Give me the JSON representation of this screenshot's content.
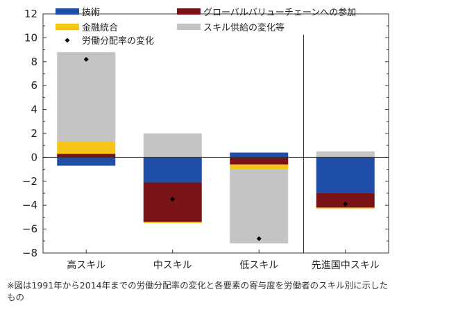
{
  "chart_data": {
    "type": "bar",
    "stacked": true,
    "categories": [
      "高スキル",
      "中スキル",
      "低スキル",
      "先進国中スキル"
    ],
    "ylim": [
      -8,
      12
    ],
    "yticks": [
      -8,
      -6,
      -4,
      -2,
      0,
      2,
      4,
      6,
      8,
      10,
      12
    ],
    "grid": false,
    "legend_position": "top",
    "series": [
      {
        "name": "技術",
        "color": "#1f4ea8",
        "values": [
          -0.7,
          -2.1,
          0.4,
          -3.0
        ]
      },
      {
        "name": "グローバルバリューチェーンへの参加",
        "color": "#7a1318",
        "values": [
          0.3,
          -3.3,
          -0.6,
          -1.2
        ]
      },
      {
        "name": "金融統合",
        "color": "#f5c518",
        "values": [
          1.0,
          -0.1,
          -0.4,
          -0.1
        ]
      },
      {
        "name": "スキル供給の変化等",
        "color": "#c4c4c4",
        "values": [
          7.5,
          2.0,
          -6.2,
          0.5
        ]
      }
    ],
    "marker_series": {
      "name": "労働分配率の変化",
      "values": [
        8.2,
        -3.5,
        -6.8,
        -3.9
      ]
    }
  },
  "note": "※図は1991年から2014年までの労働分配率の変化と各要素の寄与度を労働者のスキル別に示したもの"
}
